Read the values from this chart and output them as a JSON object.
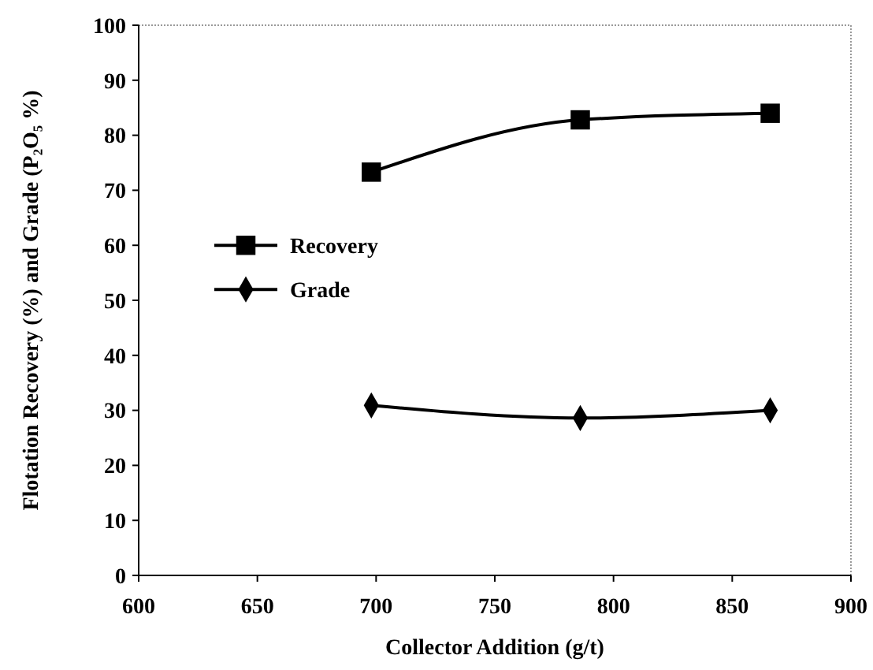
{
  "chart_data": {
    "type": "line",
    "xlabel": "Collector Addition (g/t)",
    "ylabel": "Flotation Recovery (%) and Grade (P₂O₅ %)",
    "x": [
      698,
      786,
      866
    ],
    "series": [
      {
        "name": "Recovery",
        "color": "#000000",
        "values": [
          73.3,
          82.8,
          84.0
        ],
        "marker": "square"
      },
      {
        "name": "Grade",
        "color": "#000000",
        "values": [
          30.9,
          28.6,
          30.0
        ],
        "marker": "diamond"
      }
    ],
    "xlim": [
      600,
      900
    ],
    "xticks": [
      600,
      650,
      700,
      750,
      800,
      850,
      900
    ],
    "ylim": [
      0,
      100
    ],
    "yticks": [
      0,
      10,
      20,
      30,
      40,
      50,
      60,
      70,
      80,
      90,
      100
    ],
    "grid": false,
    "legend": "left",
    "line_style": "solid"
  }
}
